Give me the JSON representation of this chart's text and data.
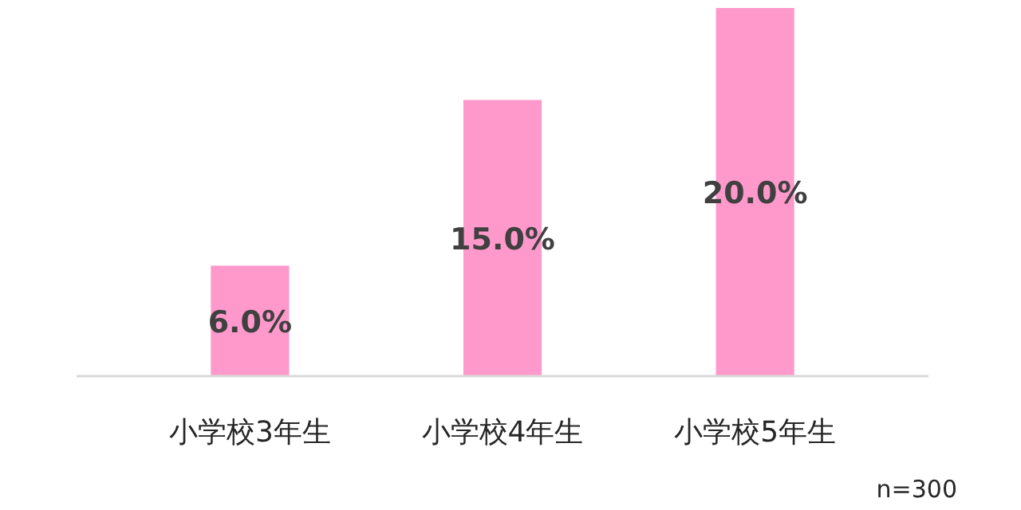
{
  "chart_data": {
    "type": "bar",
    "categories": [
      "小学校3年生",
      "小学校4年生",
      "小学校5年生"
    ],
    "values": [
      6.0,
      15.0,
      20.0
    ],
    "value_labels": [
      "6.0%",
      "15.0%",
      "20.0%"
    ],
    "color": "#ff99cc",
    "annotations": [
      "n=300"
    ]
  }
}
